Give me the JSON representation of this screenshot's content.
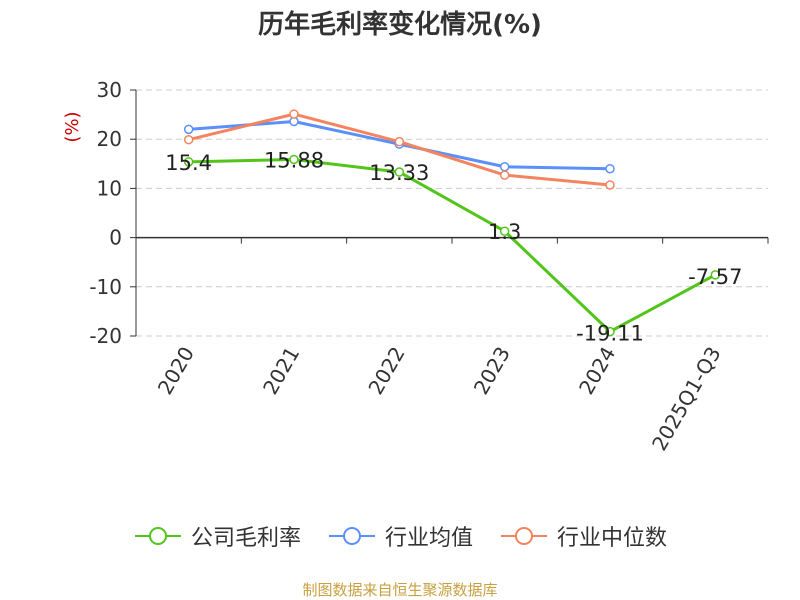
{
  "title": "历年毛利率变化情况(%)",
  "source": "制图数据来自恒生聚源数据库",
  "chart_data": {
    "type": "line",
    "title": "历年毛利率变化情况(%)",
    "ylabel": "(%)",
    "categories": [
      "2020",
      "2021",
      "2022",
      "2023",
      "2024",
      "2025Q1-Q3"
    ],
    "ylim": [
      -20,
      30
    ],
    "yticks": [
      30,
      20,
      10,
      0,
      -10,
      -20
    ],
    "grid": true,
    "legend_position": "bottom",
    "series": [
      {
        "name": "公司毛利率",
        "color": "#52c41a",
        "values": [
          15.4,
          15.88,
          13.33,
          1.3,
          -19.11,
          -7.57
        ],
        "labels": [
          "15.4",
          "15.88",
          "13.33",
          "1.3",
          "-19.11",
          "-7.57"
        ]
      },
      {
        "name": "行业均值",
        "color": "#5b8ff9",
        "values": [
          22.0,
          23.6,
          19.0,
          14.4,
          14.0,
          null
        ]
      },
      {
        "name": "行业中位数",
        "color": "#f4845f",
        "values": [
          19.9,
          25.1,
          19.5,
          12.7,
          10.7,
          null
        ]
      }
    ]
  }
}
